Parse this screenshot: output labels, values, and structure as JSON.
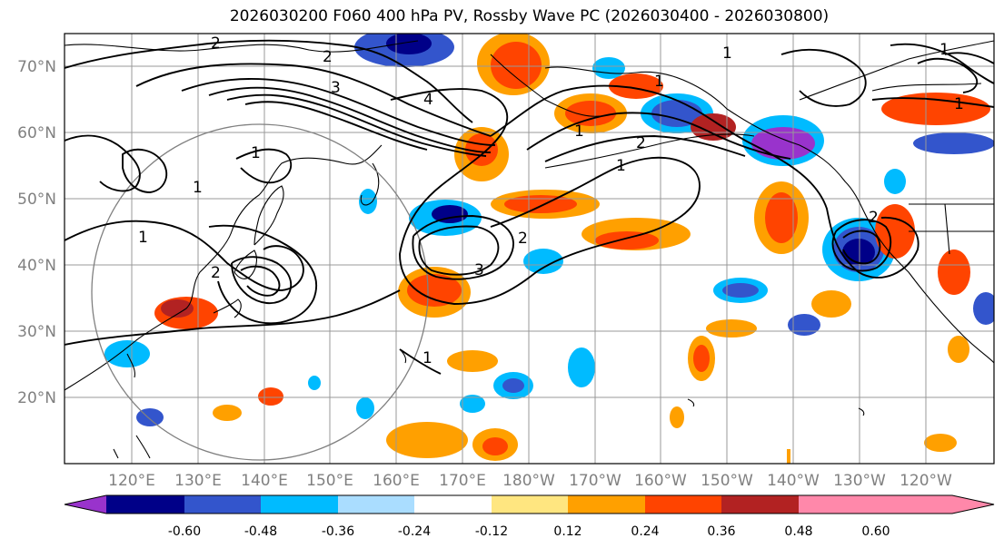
{
  "title": "2026030200 F060 400 hPa PV, Rossby Wave PC (2026030400 - 2026030800)",
  "map": {
    "lat_ticks": [
      "70°N",
      "60°N",
      "50°N",
      "40°N",
      "30°N",
      "20°N"
    ],
    "lon_ticks": [
      "120°E",
      "130°E",
      "140°E",
      "150°E",
      "160°E",
      "170°E",
      "180°W",
      "170°W",
      "160°W",
      "150°W",
      "140°W",
      "130°W",
      "120°W"
    ],
    "contour_labels": [
      "2",
      "2",
      "3",
      "4",
      "1",
      "1",
      "1",
      "2",
      "2",
      "3",
      "1",
      "1",
      "1",
      "2",
      "1",
      "1",
      "1",
      "1",
      "2"
    ]
  },
  "colorbar": {
    "colors": [
      "#9933CC",
      "#000088",
      "#3355CC",
      "#00BBFF",
      "#AADDFF",
      "#FFFFFF",
      "#FFE680",
      "#FFA000",
      "#FF4400",
      "#B22222",
      "#FF88AA"
    ],
    "tick_labels": [
      "-0.60",
      "-0.48",
      "-0.36",
      "-0.24",
      "-0.12",
      "0.12",
      "0.24",
      "0.36",
      "0.48",
      "0.60"
    ]
  }
}
